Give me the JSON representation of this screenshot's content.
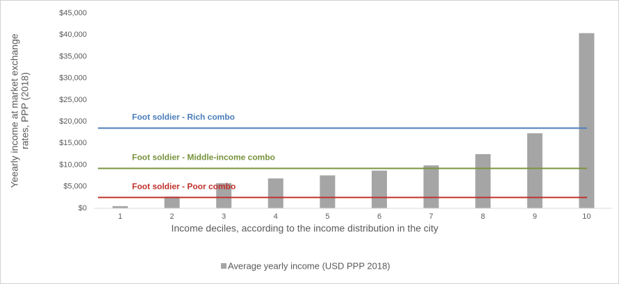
{
  "chart_data": {
    "type": "bar",
    "y_label_lines": [
      "Yeearly income at market exchange",
      "rates, PPP (2018)"
    ],
    "x_label": "Income deciles, according to the income distribution in the city",
    "categories": [
      "1",
      "2",
      "3",
      "4",
      "5",
      "6",
      "7",
      "8",
      "9",
      "10"
    ],
    "series": [
      {
        "name": "Average yearly income (USD PPP 2018)",
        "color": "#a5a5a5",
        "values": [
          500,
          2700,
          5800,
          6900,
          7600,
          8700,
          9900,
          12500,
          17300,
          40400
        ]
      }
    ],
    "reference_lines": [
      {
        "name": "Foot soldier - Rich combo",
        "value": 18500,
        "color": "#4a7ebb"
      },
      {
        "name": "Foot soldier - Middle-income combo",
        "value": 9200,
        "color": "#77933c"
      },
      {
        "name": "Foot soldier - Poor combo",
        "value": 2500,
        "color": "#c0312b"
      }
    ],
    "ylim": [
      0,
      45000
    ],
    "yticks": [
      {
        "value": 0,
        "label": "$0"
      },
      {
        "value": 5000,
        "label": "$5,000"
      },
      {
        "value": 10000,
        "label": "$10,000"
      },
      {
        "value": 15000,
        "label": "$15,000"
      },
      {
        "value": 20000,
        "label": "$20,000"
      },
      {
        "value": 25000,
        "label": "$25,000"
      },
      {
        "value": 30000,
        "label": "$30,000"
      },
      {
        "value": 35000,
        "label": "$35,000"
      },
      {
        "value": 40000,
        "label": "$40,000"
      },
      {
        "value": 45000,
        "label": "$45,000"
      }
    ],
    "grid": false,
    "legend": "bottom"
  }
}
